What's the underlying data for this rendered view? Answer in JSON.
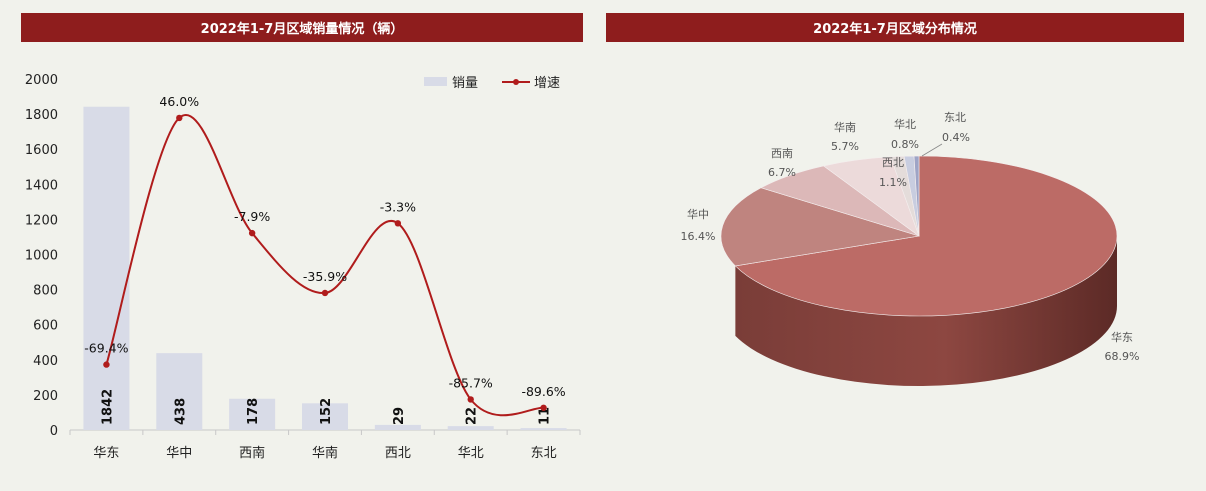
{
  "titles": {
    "left": "2022年1-7月区域销量情况（辆）",
    "right": "2022年1-7月区域分布情况"
  },
  "colors": {
    "title_bg": "#8e1d1d",
    "bar": "#d8dbe7",
    "line": "#b01c1c",
    "pie": [
      "#bc6b66",
      "#bf847f",
      "#dcb8b8",
      "#ecdada",
      "#e4dcda",
      "#c8cde0",
      "#9ea4c6"
    ]
  },
  "chart_data": [
    {
      "type": "bar",
      "title": "2022年1-7月区域销量情况（辆）",
      "categories": [
        "华东",
        "华中",
        "西南",
        "华南",
        "西北",
        "华北",
        "东北"
      ],
      "ylim": [
        0,
        2000
      ],
      "yticks": [
        0,
        200,
        400,
        600,
        800,
        1000,
        1200,
        1400,
        1600,
        1800,
        2000
      ],
      "grid": false,
      "legend": "top-right",
      "series": [
        {
          "name": "销量",
          "type": "bar",
          "values": [
            1842,
            438,
            178,
            152,
            29,
            22,
            11
          ],
          "labels": [
            "1842",
            "438",
            "178",
            "152",
            "29",
            "22",
            "11"
          ]
        },
        {
          "name": "增速",
          "type": "line",
          "values": [
            -69.4,
            46.0,
            -7.9,
            -35.9,
            -3.3,
            -85.7,
            -89.6
          ],
          "labels": [
            "-69.4%",
            "46.0%",
            "-7.9%",
            "-35.9%",
            "-3.3%",
            "-85.7%",
            "-89.6%"
          ]
        }
      ]
    },
    {
      "type": "pie",
      "title": "2022年1-7月区域分布情况",
      "categories": [
        "华东",
        "华中",
        "西南",
        "华南",
        "西北",
        "华北",
        "东北"
      ],
      "values": [
        68.9,
        16.4,
        6.7,
        5.7,
        1.1,
        0.8,
        0.4
      ],
      "labels": [
        "68.9%",
        "16.4%",
        "6.7%",
        "5.7%",
        "1.1%",
        "0.8%",
        "0.4%"
      ]
    }
  ]
}
